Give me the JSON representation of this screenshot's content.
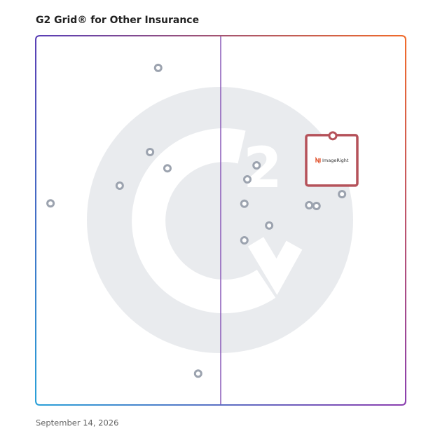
{
  "chart_data": {
    "type": "scatter",
    "title": "G2 Grid® for Other Insurance",
    "date": "September 14, 2026",
    "xlim": [
      0,
      100
    ],
    "ylim": [
      0,
      100
    ],
    "series": [
      {
        "color": "#9ca3af",
        "x": [
          33.1,
          30.9,
          35.6,
          22.7,
          4.0,
          59.7,
          57.2,
          56.4,
          63.1,
          56.4,
          73.9,
          75.9,
          82.8,
          43.9
        ],
        "values": [
          91.3,
          68.5,
          64.1,
          59.4,
          54.6,
          64.9,
          61.1,
          54.5,
          48.6,
          44.6,
          54.1,
          53.9,
          57.1,
          8.5
        ]
      }
    ],
    "highlight": {
      "name": "ImageRight",
      "color": "#b5525a",
      "x": 80.3,
      "y": 72.9
    }
  }
}
